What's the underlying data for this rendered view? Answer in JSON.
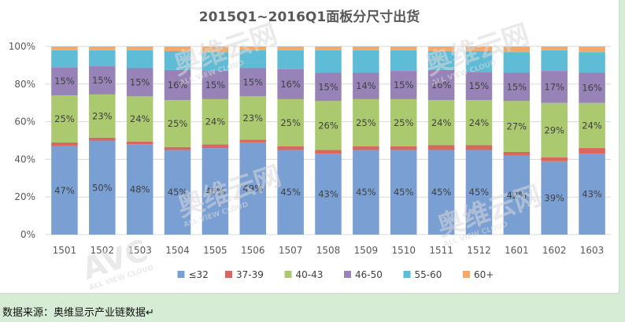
{
  "chart_data": {
    "type": "bar",
    "stacked": true,
    "title": "2015Q1~2016Q1面板分尺寸出货",
    "categories": [
      "1501",
      "1502",
      "1503",
      "1504",
      "1505",
      "1506",
      "1507",
      "1508",
      "1509",
      "1510",
      "1511",
      "1512",
      "1601",
      "1602",
      "1603"
    ],
    "ylim": [
      0,
      100
    ],
    "yticks": [
      "0%",
      "20%",
      "40%",
      "60%",
      "80%",
      "100%"
    ],
    "grid": true,
    "legend_position": "bottom",
    "series": [
      {
        "name": "≤32",
        "color": "#7a9fd3",
        "values": [
          47,
          50,
          48,
          45,
          46,
          49,
          45,
          43,
          45,
          45,
          45,
          45,
          42,
          39,
          43
        ],
        "labels": [
          "47%",
          "50%",
          "48%",
          "45%",
          "46%",
          "49%",
          "45%",
          "43%",
          "45%",
          "45%",
          "45%",
          "45%",
          "42%",
          "39%",
          "43%"
        ]
      },
      {
        "name": "37-39",
        "color": "#d9665f",
        "values": [
          2,
          1.5,
          1.5,
          1.5,
          2,
          1.5,
          2,
          2,
          2,
          2,
          2.5,
          2.5,
          2,
          2,
          3
        ],
        "labels": []
      },
      {
        "name": "40-43",
        "color": "#abc96e",
        "values": [
          25,
          23,
          24,
          25,
          24,
          23,
          25,
          26,
          25,
          25,
          24,
          24,
          27,
          29,
          24
        ],
        "labels": [
          "25%",
          "23%",
          "24%",
          "25%",
          "24%",
          "23%",
          "25%",
          "26%",
          "25%",
          "25%",
          "24%",
          "24%",
          "27%",
          "29%",
          "24%"
        ]
      },
      {
        "name": "46-50",
        "color": "#9883b8",
        "values": [
          15,
          15,
          15,
          16,
          15,
          15,
          16,
          15,
          14,
          15,
          16,
          15,
          15,
          17,
          16
        ],
        "labels": [
          "15%",
          "15%",
          "15%",
          "16%",
          "15%",
          "15%",
          "16%",
          "15%",
          "14%",
          "15%",
          "16%",
          "15%",
          "15%",
          "17%",
          "16%"
        ]
      },
      {
        "name": "55-60",
        "color": "#5fbcd6",
        "values": [
          9,
          8.5,
          9.5,
          10,
          10,
          9.5,
          10,
          12,
          12,
          11,
          10,
          11,
          11,
          11,
          11
        ],
        "labels": []
      },
      {
        "name": "60+",
        "color": "#f4a96a",
        "values": [
          2,
          2,
          2,
          2.5,
          3,
          2,
          2,
          2,
          2,
          2,
          2.5,
          2.5,
          3,
          2,
          3
        ],
        "labels": []
      }
    ]
  },
  "footer": {
    "source_text": "数据来源：奥维显示产业链数据↵"
  },
  "watermark": {
    "logo_text": "AVC",
    "cn_text": "奥维云网",
    "en_text": "ALL VIEW CLOUD"
  }
}
